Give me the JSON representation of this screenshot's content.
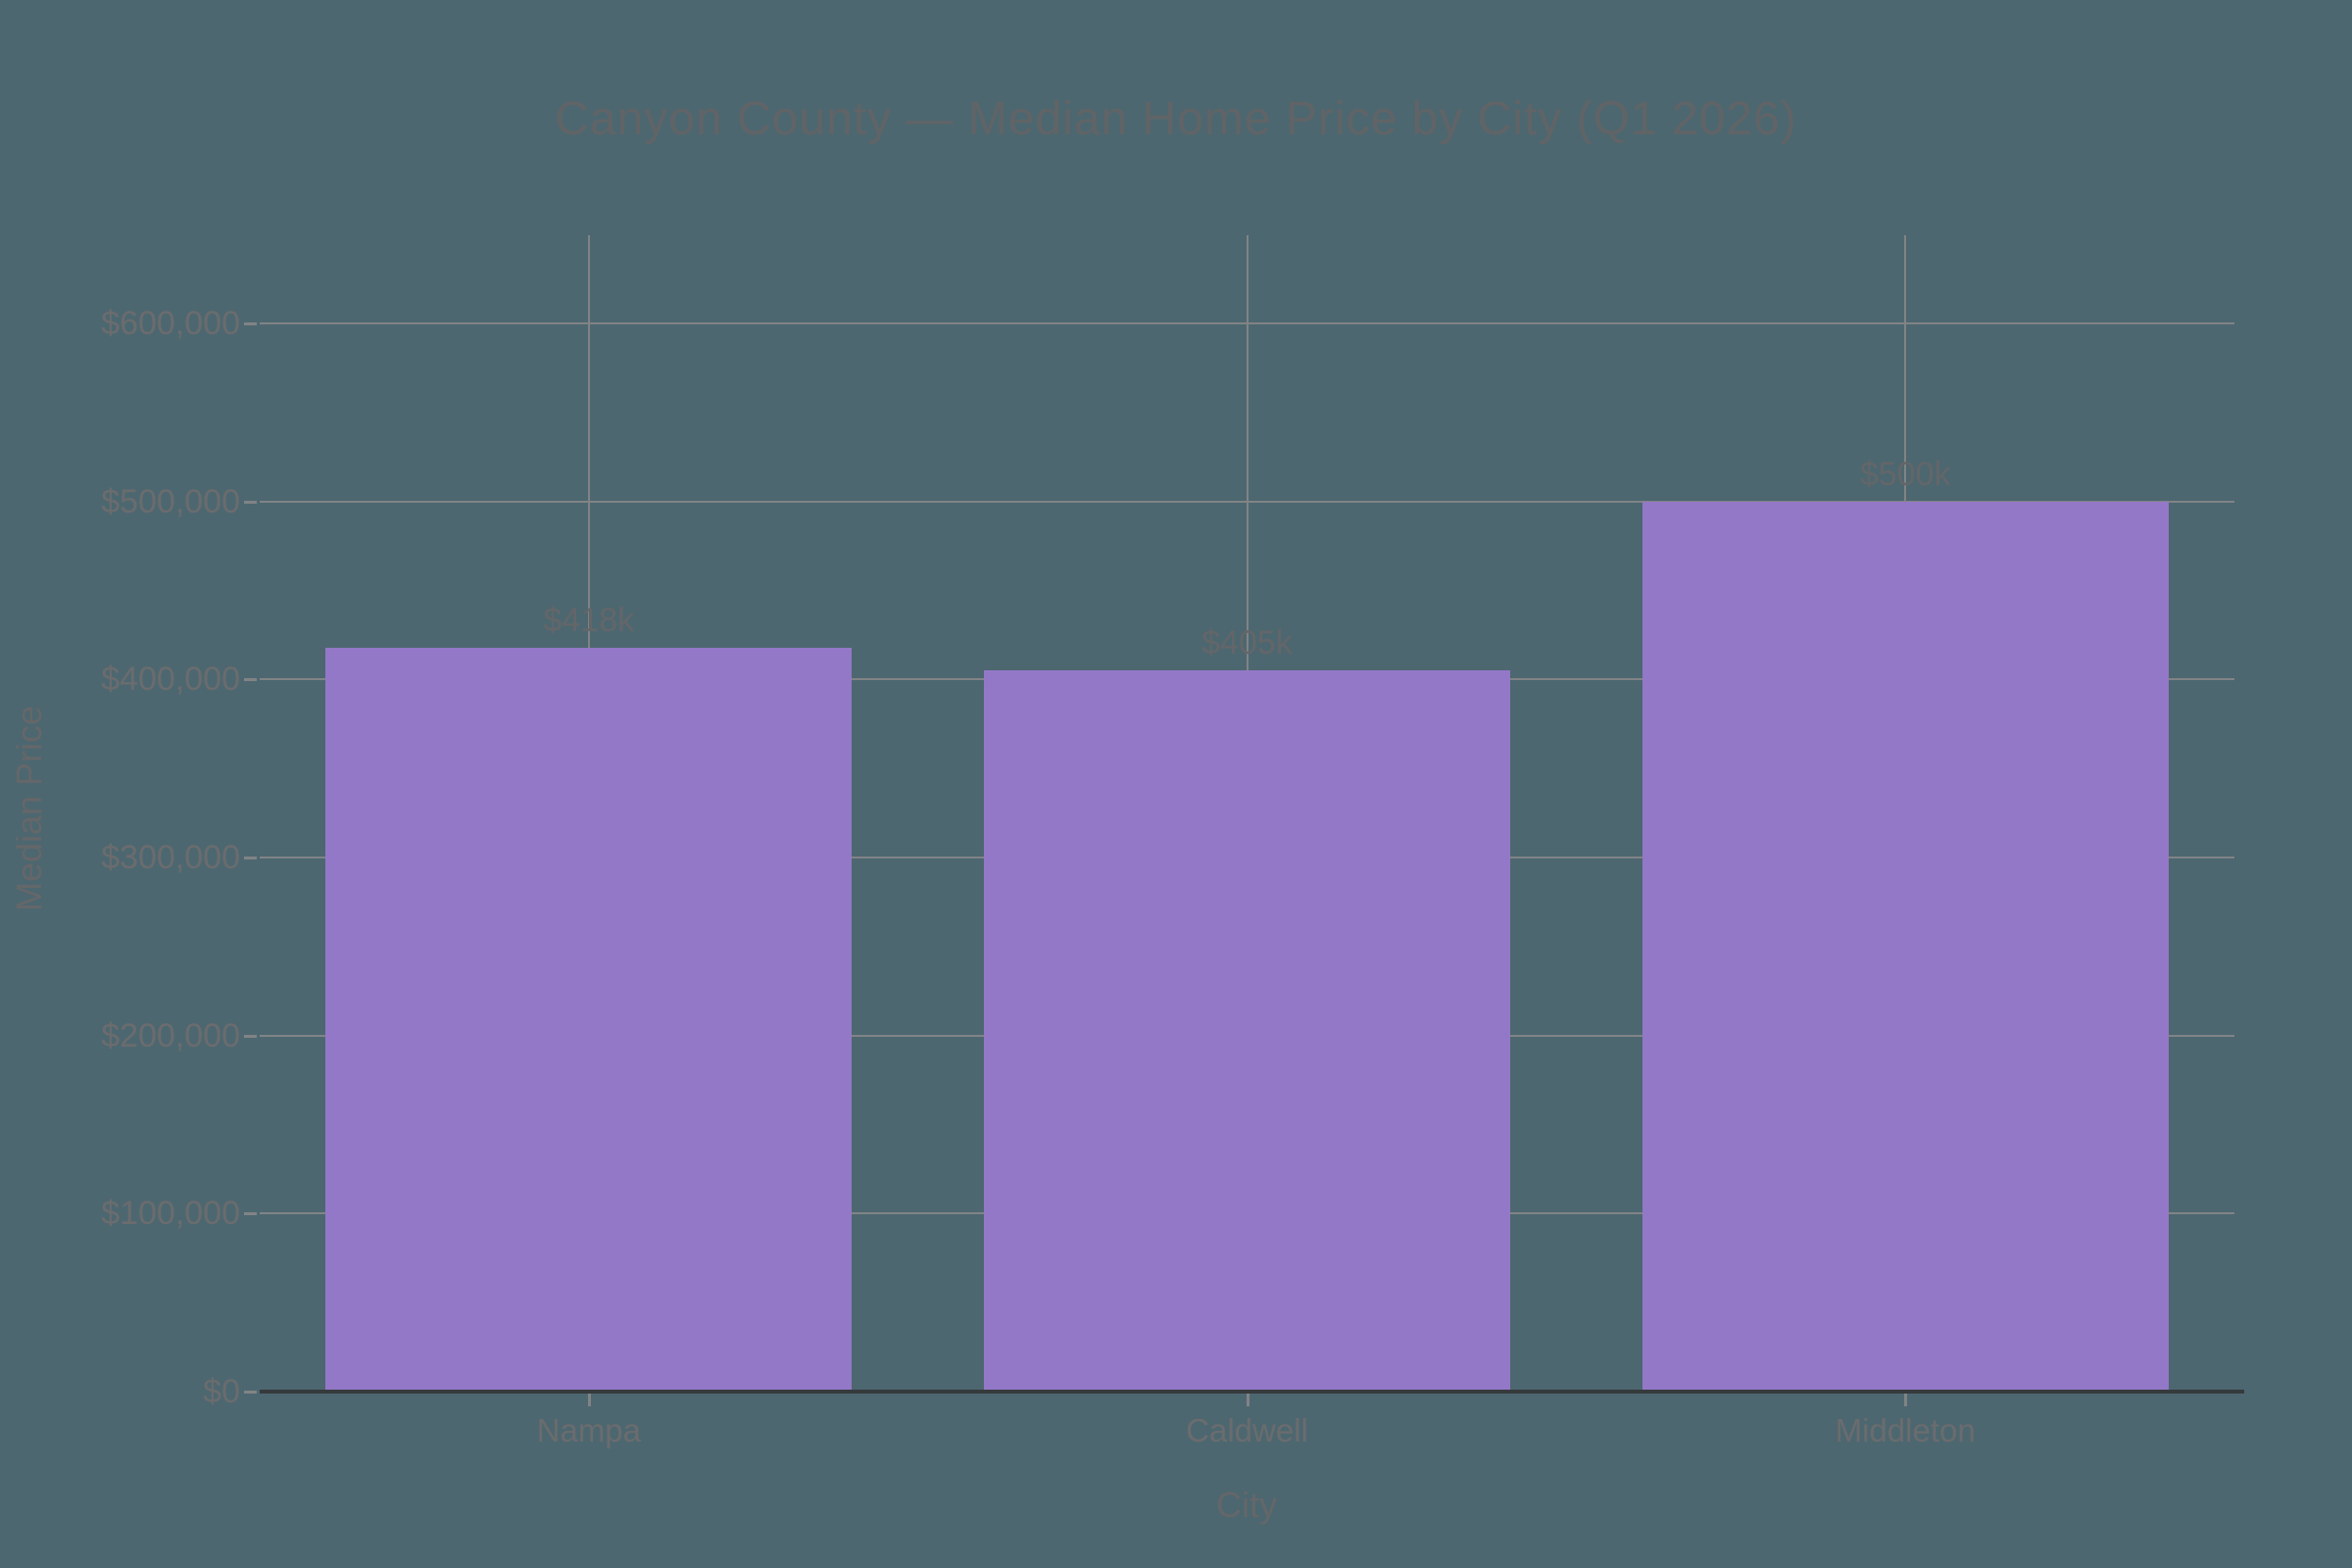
{
  "chart_data": {
    "type": "bar",
    "title": "Canyon County — Median Home Price by City (Q1 2026)",
    "xlabel": "City",
    "ylabel": "Median Price",
    "categories": [
      "Nampa",
      "Caldwell",
      "Middleton"
    ],
    "values": [
      418000,
      405000,
      500000
    ],
    "bar_labels": [
      "$418k",
      "$405k",
      "$500k"
    ],
    "yticks": [
      {
        "value": 0,
        "label": "$0"
      },
      {
        "value": 100000,
        "label": "$100,000"
      },
      {
        "value": 200000,
        "label": "$200,000"
      },
      {
        "value": 300000,
        "label": "$300,000"
      },
      {
        "value": 400000,
        "label": "$400,000"
      },
      {
        "value": 500000,
        "label": "$500,000"
      },
      {
        "value": 600000,
        "label": "$600,000"
      }
    ],
    "ylim": [
      0,
      650000
    ],
    "grid": true,
    "legend": "none",
    "colors": {
      "background": "#4d6770",
      "bar": "#9478c8",
      "gridline": "#808385",
      "axis_line": "#363a3c",
      "text": "#6a6c6e",
      "title_text": "#606466"
    }
  }
}
